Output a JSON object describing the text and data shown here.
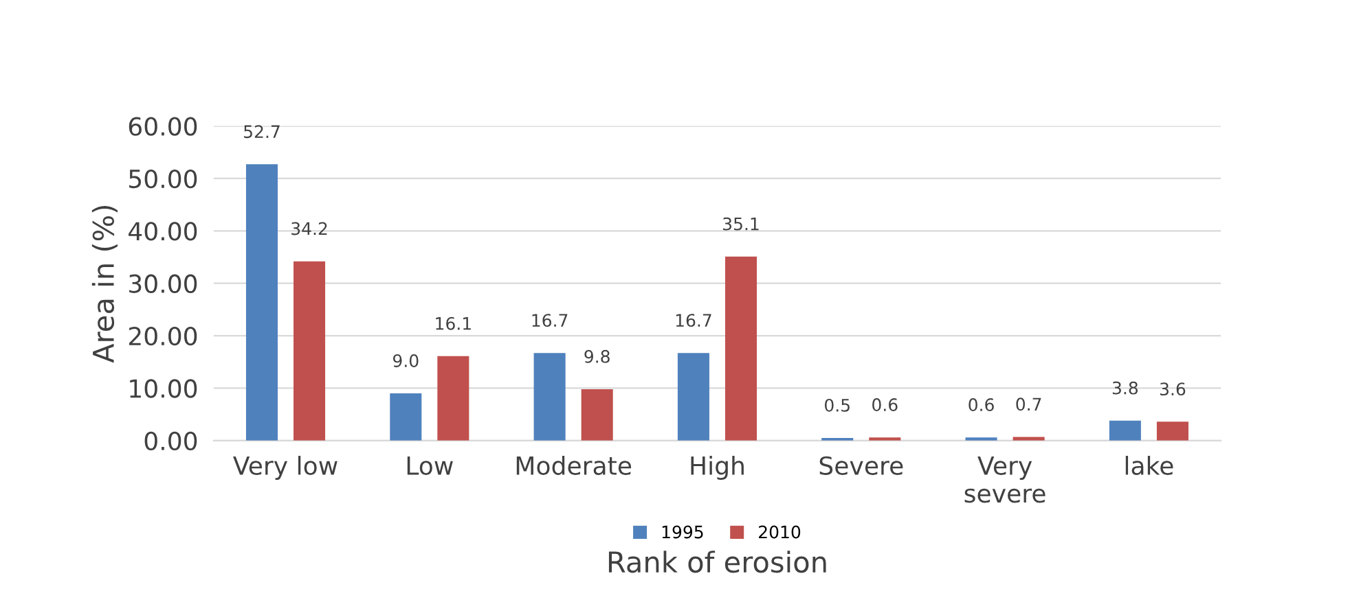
{
  "chart_data": {
    "type": "bar",
    "xlabel": "Rank of erosion",
    "ylabel": "Area in (%)",
    "categories": [
      "Very low",
      "Low",
      "Moderate",
      "High",
      "Severe",
      "Very severe",
      "lake"
    ],
    "series": [
      {
        "name": "1995",
        "color": "#4f81bd",
        "values": [
          52.7,
          9.0,
          16.7,
          16.7,
          0.5,
          0.6,
          3.8
        ],
        "value_labels": [
          "52.7",
          "9.0",
          "16.7",
          "16.7",
          "0.5",
          "0.6",
          "3.8"
        ]
      },
      {
        "name": "2010",
        "color": "#c0504d",
        "values": [
          34.2,
          16.1,
          9.8,
          35.1,
          0.6,
          0.7,
          3.6
        ],
        "value_labels": [
          "34.2",
          "16.1",
          "9.8",
          "35.1",
          "0.6",
          "0.7",
          "3.6"
        ]
      }
    ],
    "ylim": [
      0,
      60
    ],
    "yticks": [
      {
        "value": 0,
        "label": "0.00"
      },
      {
        "value": 10,
        "label": "10.00"
      },
      {
        "value": 20,
        "label": "20.00"
      },
      {
        "value": 30,
        "label": "30.00"
      },
      {
        "value": 40,
        "label": "40.00"
      },
      {
        "value": 50,
        "label": "50.00"
      },
      {
        "value": 60,
        "label": "60.00"
      }
    ],
    "grid": "y",
    "legend": "bottom"
  }
}
